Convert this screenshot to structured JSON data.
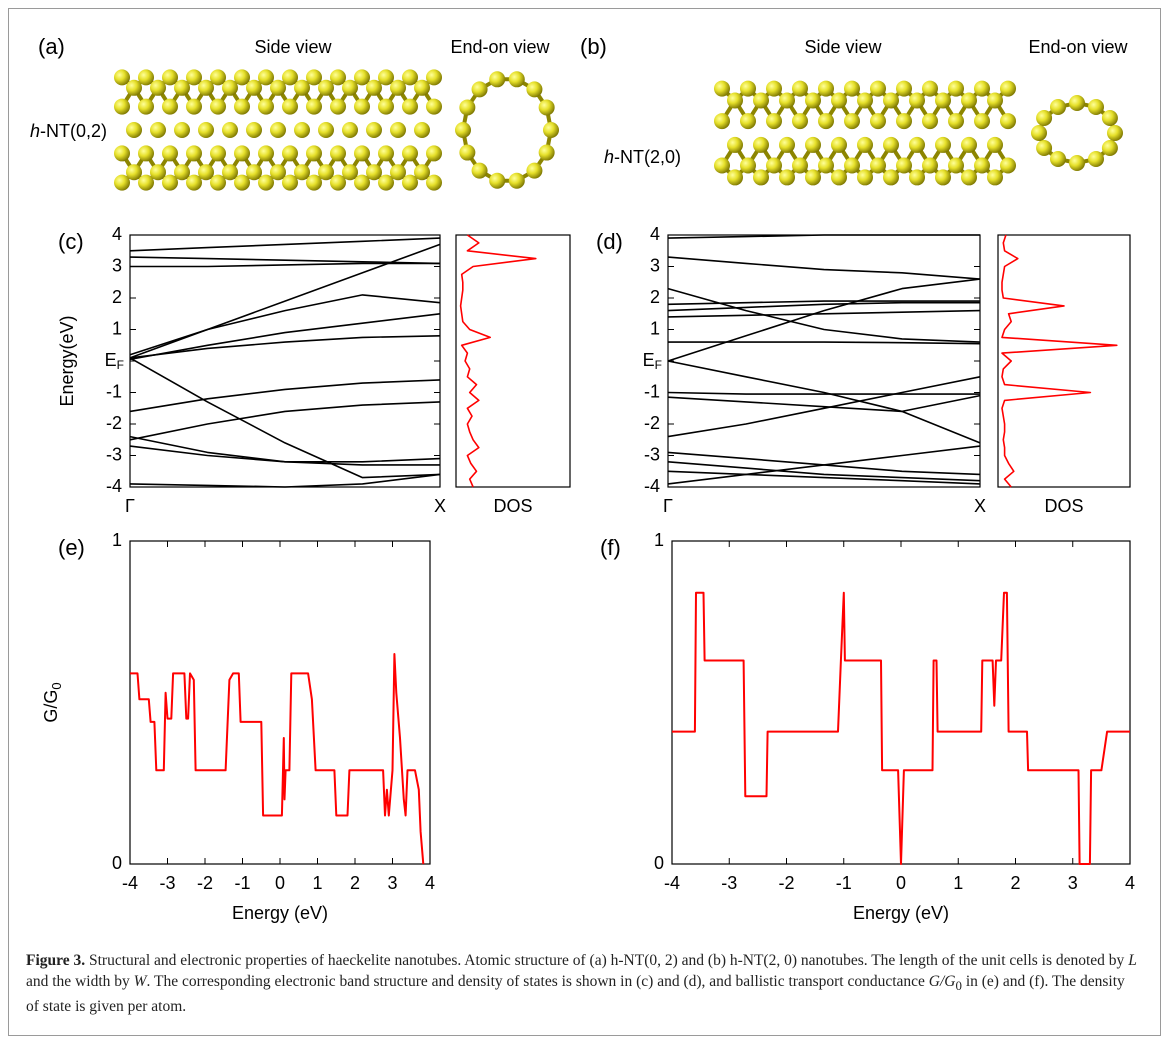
{
  "panels": {
    "a": {
      "label": "(a)",
      "side": "Side view",
      "end": "End-on view",
      "name_italic": "h",
      "name_rest": "-NT(0,2)"
    },
    "b": {
      "label": "(b)",
      "side": "Side view",
      "end": "End-on view",
      "name_italic": "h",
      "name_rest": "-NT(2,0)"
    }
  },
  "chart_data": [
    {
      "type": "band",
      "panel": "(c)",
      "ylabel": "Energy(eV)",
      "color": "#000000",
      "x": [
        0,
        0.25,
        0.5,
        0.75,
        1
      ],
      "xlim": [
        0,
        1
      ],
      "xticks": [
        {
          "value": 0,
          "label": "Γ"
        },
        {
          "value": 1,
          "label": "X"
        }
      ],
      "ylim": [
        -4,
        4
      ],
      "yticks": [
        -4,
        -3,
        -2,
        -1,
        {
          "value": 0,
          "label": "E",
          "subscript": "F"
        },
        1,
        2,
        3,
        4
      ],
      "series": [
        {
          "values": [
            3.5,
            3.6,
            3.7,
            3.8,
            3.9
          ]
        },
        {
          "values": [
            3.3,
            3.25,
            3.2,
            3.15,
            3.1
          ]
        },
        {
          "values": [
            3.0,
            3.0,
            3.05,
            3.1,
            3.1
          ]
        },
        {
          "values": [
            0.1,
            1.0,
            1.9,
            2.8,
            3.7
          ]
        },
        {
          "values": [
            0.2,
            1.0,
            1.6,
            2.1,
            1.85
          ]
        },
        {
          "values": [
            0.1,
            0.4,
            0.6,
            0.75,
            0.8
          ]
        },
        {
          "values": [
            0.05,
            0.5,
            0.9,
            1.2,
            1.5
          ]
        },
        {
          "values": [
            0.1,
            -1.3,
            -2.6,
            -3.7,
            -3.6
          ]
        },
        {
          "values": [
            -1.6,
            -1.2,
            -0.9,
            -0.7,
            -0.6
          ]
        },
        {
          "values": [
            -2.5,
            -2.0,
            -1.6,
            -1.4,
            -1.3
          ]
        },
        {
          "values": [
            -2.4,
            -2.9,
            -3.2,
            -3.2,
            -3.1
          ]
        },
        {
          "values": [
            -2.7,
            -3.0,
            -3.2,
            -3.3,
            -3.3
          ]
        },
        {
          "values": [
            -3.9,
            -3.95,
            -4.0,
            -3.9,
            -3.6
          ]
        }
      ]
    },
    {
      "type": "dos",
      "xlabel": "DOS",
      "color": "#ff0000",
      "xlim": [
        0,
        1
      ],
      "ylim": [
        -4,
        4
      ],
      "energy": [
        -4,
        -3.75,
        -3.5,
        -3.25,
        -3,
        -2.75,
        -2.5,
        -2.25,
        -2,
        -1.75,
        -1.5,
        -1.25,
        -1,
        -0.75,
        -0.5,
        -0.25,
        0,
        0.25,
        0.5,
        0.75,
        1,
        1.25,
        1.5,
        1.75,
        2,
        2.25,
        2.5,
        2.75,
        3,
        3.25,
        3.5,
        3.75,
        4
      ],
      "values": [
        0.15,
        0.12,
        0.18,
        0.13,
        0.1,
        0.2,
        0.15,
        0.12,
        0.1,
        0.14,
        0.1,
        0.2,
        0.12,
        0.18,
        0.1,
        0.12,
        0.08,
        0.1,
        0.05,
        0.3,
        0.12,
        0.06,
        0.05,
        0.04,
        0.05,
        0.06,
        0.06,
        0.05,
        0.15,
        0.7,
        0.1,
        0.2,
        0.1
      ]
    },
    {
      "type": "band",
      "panel": "(d)",
      "color": "#000000",
      "x": [
        0,
        0.25,
        0.5,
        0.75,
        1
      ],
      "xlim": [
        0,
        1
      ],
      "xticks": [
        {
          "value": 0,
          "label": "Γ"
        },
        {
          "value": 1,
          "label": "X"
        }
      ],
      "ylim": [
        -4,
        4
      ],
      "yticks": [
        -4,
        -3,
        -2,
        -1,
        {
          "value": 0,
          "label": "E",
          "subscript": "F"
        },
        1,
        2,
        3,
        4
      ],
      "series": [
        {
          "values": [
            3.9,
            3.95,
            4.0,
            4.0,
            4.0
          ]
        },
        {
          "values": [
            3.3,
            3.1,
            2.9,
            2.8,
            2.6
          ]
        },
        {
          "values": [
            2.3,
            1.6,
            1.0,
            0.7,
            0.6
          ]
        },
        {
          "values": [
            1.8,
            1.85,
            1.9,
            1.9,
            1.9
          ]
        },
        {
          "values": [
            1.6,
            1.7,
            1.8,
            1.85,
            1.85
          ]
        },
        {
          "values": [
            1.4,
            1.45,
            1.5,
            1.55,
            1.6
          ]
        },
        {
          "values": [
            0.6,
            0.6,
            0.6,
            0.58,
            0.55
          ]
        },
        {
          "values": [
            0,
            0.8,
            1.6,
            2.3,
            2.6
          ]
        },
        {
          "values": [
            -1.0,
            -1.05,
            -1.05,
            -1.05,
            -1.05
          ]
        },
        {
          "values": [
            0,
            -0.5,
            -1.0,
            -1.6,
            -2.6
          ]
        },
        {
          "values": [
            -2.4,
            -2.0,
            -1.5,
            -1.0,
            -0.5
          ]
        },
        {
          "values": [
            -1.15,
            -1.3,
            -1.45,
            -1.6,
            -1.1
          ]
        },
        {
          "values": [
            -2.9,
            -3.1,
            -3.3,
            -3.5,
            -3.6
          ]
        },
        {
          "values": [
            -3.5,
            -3.6,
            -3.7,
            -3.8,
            -3.9
          ]
        },
        {
          "values": [
            -3.9,
            -3.6,
            -3.3,
            -3.0,
            -2.7
          ]
        },
        {
          "values": [
            -3.2,
            -3.4,
            -3.6,
            -3.7,
            -3.8
          ]
        }
      ]
    },
    {
      "type": "dos",
      "xlabel": "DOS",
      "color": "#ff0000",
      "xlim": [
        0,
        1
      ],
      "ylim": [
        -4,
        4
      ],
      "energy": [
        -4,
        -3.75,
        -3.5,
        -3.25,
        -3,
        -2.75,
        -2.5,
        -2.25,
        -2,
        -1.75,
        -1.5,
        -1.25,
        -1,
        -0.75,
        -0.5,
        -0.25,
        0,
        0.25,
        0.5,
        0.75,
        1,
        1.25,
        1.5,
        1.75,
        2,
        2.25,
        2.5,
        2.75,
        3,
        3.25,
        3.5,
        3.75,
        4
      ],
      "values": [
        0.1,
        0.05,
        0.12,
        0.08,
        0.05,
        0.05,
        0.04,
        0.05,
        0.05,
        0.04,
        0.03,
        0.05,
        0.7,
        0.05,
        0.03,
        0.04,
        0.1,
        0.03,
        0.9,
        0.03,
        0.05,
        0.1,
        0.08,
        0.5,
        0.04,
        0.03,
        0.03,
        0.04,
        0.05,
        0.15,
        0.05,
        0.04,
        0.06
      ]
    },
    {
      "type": "line",
      "panel": "(e)",
      "xlabel": "Energy (eV)",
      "ylabel": {
        "text": "G/G",
        "subscript": "0"
      },
      "color": "#ff0000",
      "xlim": [
        -4,
        4
      ],
      "xticks": [
        -4,
        -3,
        -2,
        -1,
        0,
        1,
        2,
        3,
        4
      ],
      "ylim": [
        0,
        1
      ],
      "yticks": [
        0,
        1
      ],
      "x": [
        -4,
        -3.8,
        -3.75,
        -3.5,
        -3.45,
        -3.35,
        -3.3,
        -3.1,
        -3.05,
        -3.0,
        -2.9,
        -2.85,
        -2.55,
        -2.5,
        -2.45,
        -2.4,
        -2.3,
        -2.25,
        -1.45,
        -1.35,
        -1.25,
        -1.1,
        -1.05,
        -0.5,
        -0.45,
        0.05,
        0.1,
        0.12,
        0.15,
        0.25,
        0.3,
        0.75,
        0.85,
        0.95,
        1.45,
        1.5,
        1.8,
        1.85,
        2.75,
        2.8,
        2.85,
        2.9,
        3.0,
        3.05,
        3.1,
        3.2,
        3.3,
        3.35,
        3.4,
        3.6,
        3.7,
        3.75,
        3.82
      ],
      "values": [
        0.59,
        0.59,
        0.51,
        0.51,
        0.44,
        0.44,
        0.29,
        0.29,
        0.53,
        0.45,
        0.45,
        0.59,
        0.59,
        0.45,
        0.45,
        0.59,
        0.57,
        0.29,
        0.29,
        0.57,
        0.59,
        0.59,
        0.44,
        0.44,
        0.15,
        0.15,
        0.39,
        0.2,
        0.29,
        0.29,
        0.59,
        0.59,
        0.51,
        0.29,
        0.29,
        0.15,
        0.15,
        0.29,
        0.29,
        0.15,
        0.23,
        0.15,
        0.29,
        0.65,
        0.53,
        0.39,
        0.2,
        0.15,
        0.29,
        0.29,
        0.23,
        0.1,
        0
      ]
    },
    {
      "type": "line",
      "panel": "(f)",
      "xlabel": "Energy (eV)",
      "color": "#ff0000",
      "xlim": [
        -4,
        4
      ],
      "xticks": [
        -4,
        -3,
        -2,
        -1,
        0,
        1,
        2,
        3,
        4
      ],
      "ylim": [
        0,
        1
      ],
      "yticks": [
        0,
        1
      ],
      "x": [
        -4,
        -3.6,
        -3.58,
        -3.45,
        -3.43,
        -2.75,
        -2.72,
        -2.35,
        -2.33,
        -1.1,
        -1.05,
        -1.0,
        -0.98,
        -0.35,
        -0.33,
        -0.05,
        0,
        0.05,
        0.55,
        0.57,
        0.62,
        0.64,
        1.4,
        1.42,
        1.6,
        1.63,
        1.66,
        1.75,
        1.8,
        1.85,
        1.88,
        2.2,
        2.22,
        3.1,
        3.12,
        3.3,
        3.32,
        3.5,
        3.6,
        4
      ],
      "values": [
        0.41,
        0.41,
        0.84,
        0.84,
        0.63,
        0.63,
        0.21,
        0.21,
        0.41,
        0.41,
        0.63,
        0.84,
        0.63,
        0.63,
        0.29,
        0.29,
        0,
        0.29,
        0.29,
        0.63,
        0.63,
        0.41,
        0.41,
        0.63,
        0.63,
        0.49,
        0.63,
        0.63,
        0.84,
        0.84,
        0.41,
        0.41,
        0.29,
        0.29,
        0,
        0,
        0.29,
        0.29,
        0.41,
        0.41
      ]
    }
  ],
  "caption": {
    "label": "Figure 3.",
    "parts": [
      "Structural and electronic properties of haeckelite nanotubes. Atomic structure of (a) h-NT(0, 2) and (b) h-NT(2, 0) nanotubes. The length of the unit cells is denoted by ",
      "L",
      " and the width by ",
      "W",
      ". The corresponding electronic band structure and density of states is shown in (c) and (d), and ballistic transport conductance ",
      "G/G",
      "0",
      " in (e) and (f). The density of state is given per atom."
    ]
  }
}
